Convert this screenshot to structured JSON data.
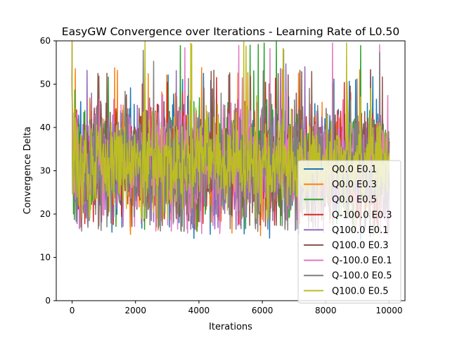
{
  "chart_data": {
    "type": "line",
    "title": "EasyGW Convergence over Iterations - Learning Rate of L0.50",
    "xlabel": "Iterations",
    "ylabel": "Convergence Delta",
    "xlim": [
      -500,
      10500
    ],
    "ylim": [
      0,
      60
    ],
    "x_ticks": [
      0,
      2000,
      4000,
      6000,
      8000,
      10000
    ],
    "x_tick_labels": [
      "0",
      "2000",
      "4000",
      "6000",
      "8000",
      "10000"
    ],
    "y_ticks": [
      0,
      10,
      20,
      30,
      40,
      50,
      60
    ],
    "y_tick_labels": [
      "0",
      "10",
      "20",
      "30",
      "40",
      "50",
      "60"
    ],
    "grid": false,
    "legend_position": "lower-right",
    "x_range": [
      0,
      10000
    ],
    "series": [
      {
        "name": "Q0.0 E0.1",
        "color": "#1f77b4",
        "mean": 31.5,
        "spread": 6.0,
        "min": 14.0,
        "max": 52.5
      },
      {
        "name": "Q0.0 E0.3",
        "color": "#ff7f0e",
        "mean": 31.5,
        "spread": 6.0,
        "min": 15.0,
        "max": 54.0
      },
      {
        "name": "Q0.0 E0.5",
        "color": "#2ca02c",
        "mean": 31.5,
        "spread": 6.2,
        "min": 16.0,
        "max": 60.0
      },
      {
        "name": "Q-100.0 E0.3",
        "color": "#d62728",
        "mean": 31.5,
        "spread": 6.0,
        "min": 17.0,
        "max": 52.0
      },
      {
        "name": "Q100.0 E0.1",
        "color": "#9467bd",
        "mean": 31.5,
        "spread": 6.0,
        "min": 16.5,
        "max": 55.0
      },
      {
        "name": "Q100.0 E0.3",
        "color": "#8c564b",
        "mean": 31.5,
        "spread": 6.0,
        "min": 17.0,
        "max": 53.5
      },
      {
        "name": "Q-100.0 E0.1",
        "color": "#e377c2",
        "mean": 31.5,
        "spread": 6.5,
        "min": 15.5,
        "max": 60.0
      },
      {
        "name": "Q-100.0 E0.5",
        "color": "#7f7f7f",
        "mean": 31.5,
        "spread": 7.0,
        "min": 16.0,
        "max": 58.0
      },
      {
        "name": "Q100.0 E0.5",
        "color": "#bcbd22",
        "mean": 31.5,
        "spread": 5.5,
        "min": 19.0,
        "max": 60.0
      }
    ]
  }
}
